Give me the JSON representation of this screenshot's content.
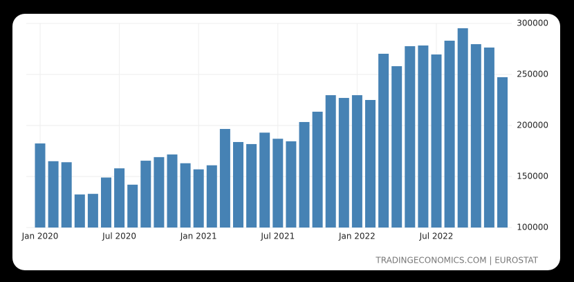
{
  "chart_data": {
    "type": "bar",
    "categories": [
      "Jan 2020",
      null,
      null,
      null,
      null,
      null,
      "Jul 2020",
      null,
      null,
      null,
      null,
      null,
      "Jan 2021",
      null,
      null,
      null,
      null,
      null,
      "Jul 2021",
      null,
      null,
      null,
      null,
      null,
      "Jan 2022",
      null,
      null,
      null,
      null,
      null,
      "Jul 2022",
      null,
      null,
      null,
      null,
      null
    ],
    "values": [
      182400,
      165000,
      164000,
      132400,
      133000,
      149000,
      158000,
      142000,
      165500,
      169000,
      171600,
      163000,
      157000,
      161000,
      196600,
      183800,
      181800,
      193000,
      187000,
      184500,
      203400,
      213500,
      229700,
      227000,
      229700,
      225000,
      270300,
      258100,
      277700,
      278400,
      269600,
      283100,
      295300,
      279700,
      276400,
      247300
    ],
    "color": "#4682b4",
    "ylim": [
      100000,
      300000
    ],
    "yticks": [
      100000,
      150000,
      200000,
      250000,
      300000
    ],
    "grid": true,
    "source": "TRADINGECONOMICS.COM | EUROSTAT"
  }
}
